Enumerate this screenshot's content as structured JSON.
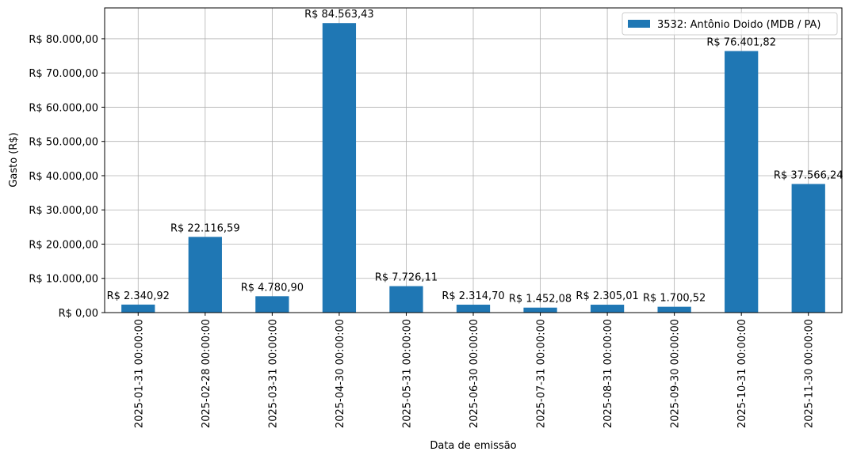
{
  "chart_data": {
    "type": "bar",
    "x_label": "Data de emissão",
    "y_label": "Gasto (R$)",
    "categories": [
      "2025-01-31 00:00:00",
      "2025-02-28 00:00:00",
      "2025-03-31 00:00:00",
      "2025-04-30 00:00:00",
      "2025-05-31 00:00:00",
      "2025-06-30 00:00:00",
      "2025-07-31 00:00:00",
      "2025-08-31 00:00:00",
      "2025-09-30 00:00:00",
      "2025-10-31 00:00:00",
      "2025-11-30 00:00:00"
    ],
    "series": [
      {
        "name": "3532: Antônio Doido (MDB / PA)",
        "color": "#1f77b4",
        "values": [
          2340.92,
          22116.59,
          4780.9,
          84563.43,
          7726.11,
          2314.7,
          1452.08,
          2305.01,
          1700.52,
          76401.82,
          37566.24
        ],
        "value_labels": [
          "R$ 2.340,92",
          "R$ 22.116,59",
          "R$ 4.780,90",
          "R$ 84.563,43",
          "R$ 7.726,11",
          "R$ 2.314,70",
          "R$ 1.452,08",
          "R$ 2.305,01",
          "R$ 1.700,52",
          "R$ 76.401,82",
          "R$ 37.566,24"
        ]
      }
    ],
    "ylim": [
      0,
      89000
    ],
    "yticks": [
      {
        "value": 0,
        "label": "R$ 0,00"
      },
      {
        "value": 10000,
        "label": "R$ 10.000,00"
      },
      {
        "value": 20000,
        "label": "R$ 20.000,00"
      },
      {
        "value": 30000,
        "label": "R$ 30.000,00"
      },
      {
        "value": 40000,
        "label": "R$ 40.000,00"
      },
      {
        "value": 50000,
        "label": "R$ 50.000,00"
      },
      {
        "value": 60000,
        "label": "R$ 60.000,00"
      },
      {
        "value": 70000,
        "label": "R$ 70.000,00"
      },
      {
        "value": 80000,
        "label": "R$ 80.000,00"
      }
    ],
    "grid": true,
    "legend": "upper right"
  }
}
